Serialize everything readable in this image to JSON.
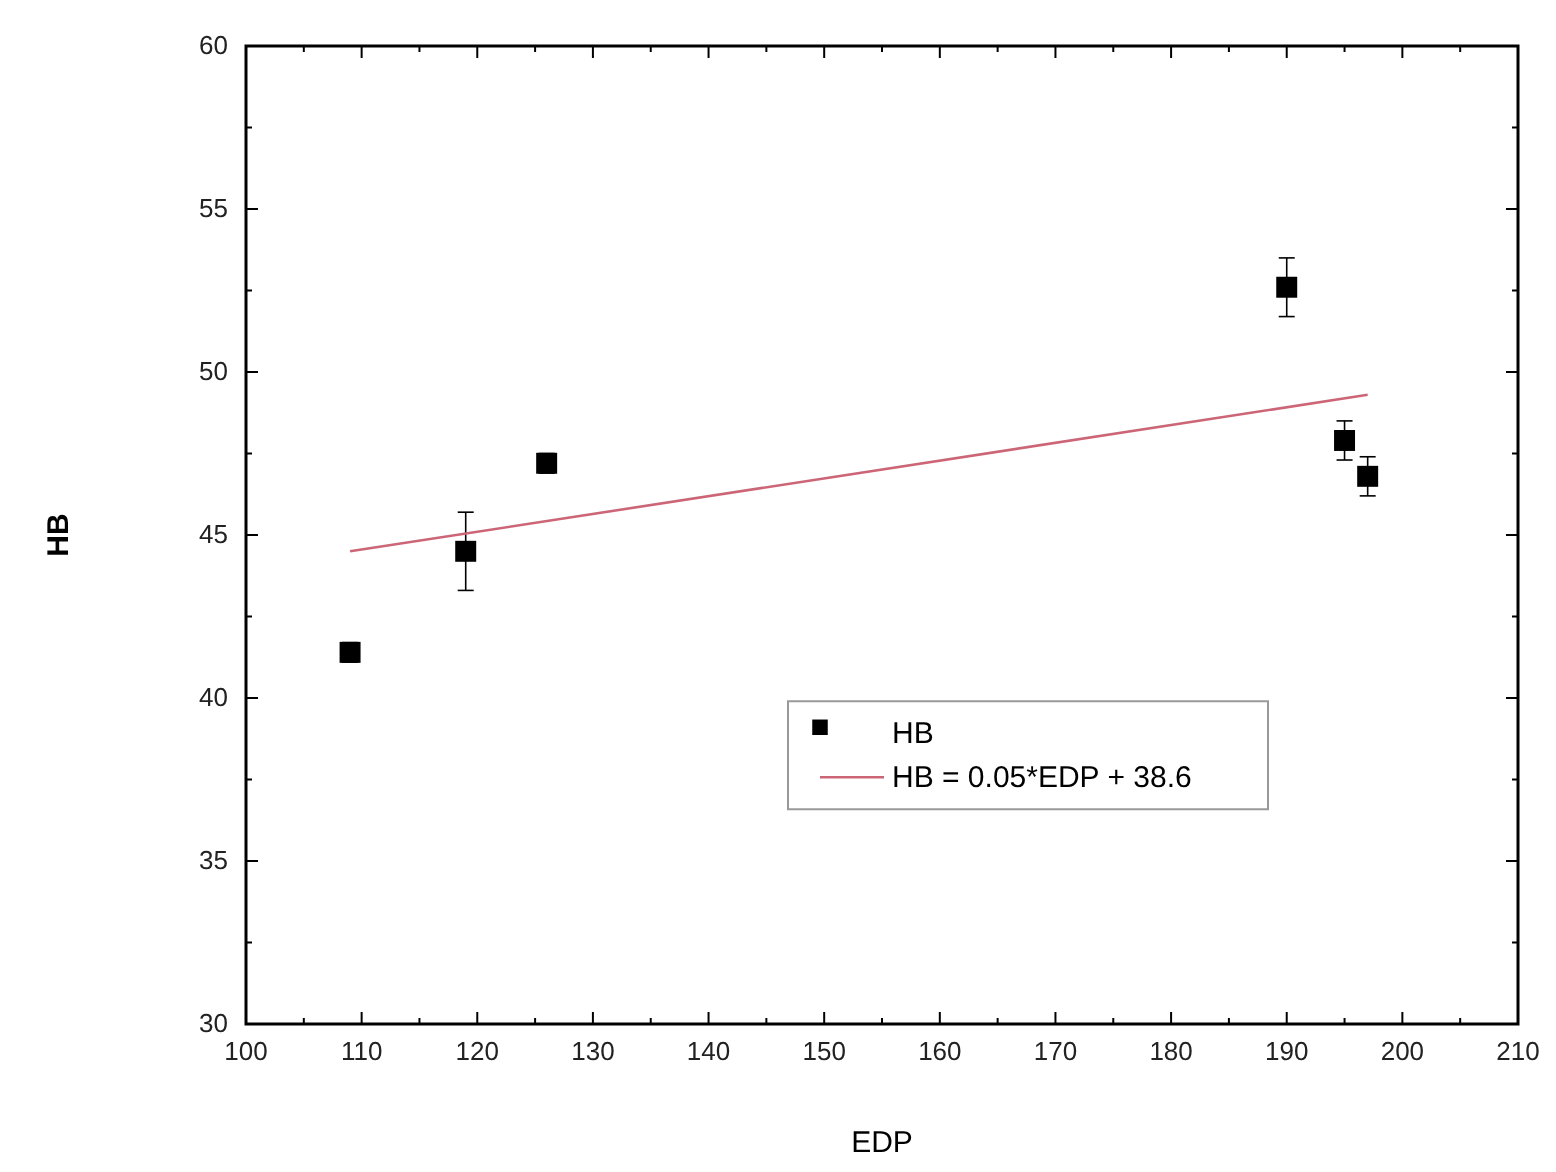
{
  "chart_data": {
    "type": "scatter",
    "xlabel": "EDP",
    "ylabel": "HB",
    "xlim": [
      100,
      210
    ],
    "xticks": [
      100,
      110,
      120,
      130,
      140,
      150,
      160,
      170,
      180,
      190,
      200,
      210
    ],
    "ylim": [
      30,
      60
    ],
    "yticks": [
      30,
      35,
      40,
      45,
      50,
      55,
      60
    ],
    "grid": false,
    "legend": "bottom right",
    "series": [
      {
        "name": "HB",
        "color": "#000000",
        "marker": "square",
        "x": [
          109,
          119,
          126,
          190,
          195,
          197
        ],
        "values": [
          41.4,
          44.5,
          47.2,
          52.6,
          47.9,
          46.8
        ],
        "errors": [
          0.3,
          1.2,
          0.3,
          0.9,
          0.6,
          0.6
        ]
      },
      {
        "name": "HB = 0.05*EDP + 38.6",
        "type": "line",
        "color": "#cc6677",
        "x": [
          109,
          197
        ],
        "values": [
          44.5,
          49.3
        ],
        "line_style": "solid"
      }
    ]
  }
}
